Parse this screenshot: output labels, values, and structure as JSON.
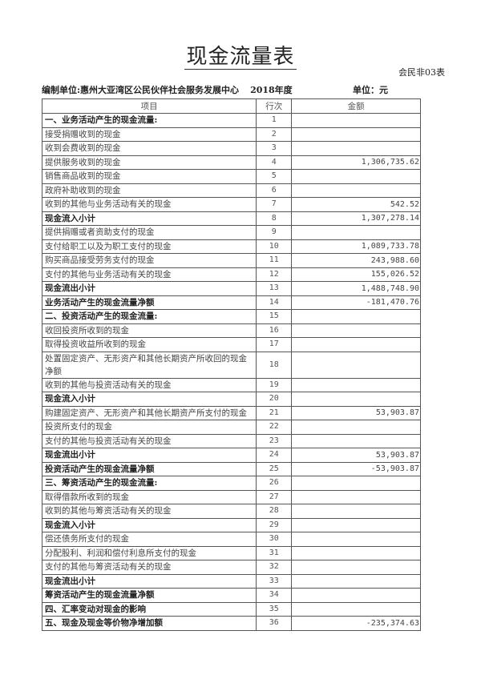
{
  "title": "现金流量表",
  "form_no": "会民非03表",
  "org_label": "编制单位:惠州大亚湾区公民伙伴社会服务发展中心",
  "year": "2018年度",
  "unit": "单位：元",
  "columns": [
    "项目",
    "行次",
    "金额"
  ],
  "rows": [
    {
      "item": "一、业务活动产生的现金流量:",
      "no": "1",
      "amount": "",
      "bold": true
    },
    {
      "item": "接受捐赠收到的现金",
      "no": "2",
      "amount": ""
    },
    {
      "item": "收到会费收到的现金",
      "no": "3",
      "amount": ""
    },
    {
      "item": "提供服务收到的现金",
      "no": "4",
      "amount": "1,306,735.62"
    },
    {
      "item": "销售商品收到的现金",
      "no": "5",
      "amount": ""
    },
    {
      "item": "政府补助收到的现金",
      "no": "6",
      "amount": ""
    },
    {
      "item": "收到的其他与业务活动有关的现金",
      "no": "7",
      "amount": "542.52"
    },
    {
      "item": "现金流入小计",
      "no": "8",
      "amount": "1,307,278.14",
      "bold": true
    },
    {
      "item": "提供捐赠或者资助支付的现金",
      "no": "9",
      "amount": ""
    },
    {
      "item": "支付给职工以及为职工支付的现金",
      "no": "10",
      "amount": "1,089,733.78"
    },
    {
      "item": "购买商品接受劳务支付的现金",
      "no": "11",
      "amount": "243,988.60"
    },
    {
      "item": "支付的其他与业务活动有关的现金",
      "no": "12",
      "amount": "155,026.52"
    },
    {
      "item": "现金流出小计",
      "no": "13",
      "amount": "1,488,748.90",
      "bold": true
    },
    {
      "item": "业务活动产生的现金流量净额",
      "no": "14",
      "amount": "-181,470.76",
      "bold": true
    },
    {
      "item": "二、投资活动产生的现金流量:",
      "no": "15",
      "amount": "",
      "bold": true
    },
    {
      "item": "收回投资所收到的现金",
      "no": "16",
      "amount": ""
    },
    {
      "item": "取得投资收益所收到的现金",
      "no": "17",
      "amount": ""
    },
    {
      "item": "处置固定资产、无形资产和其他长期资产所收回的现金净额",
      "no": "18",
      "amount": ""
    },
    {
      "item": "收到的其他与投资活动有关的现金",
      "no": "19",
      "amount": ""
    },
    {
      "item": "现金流入小计",
      "no": "20",
      "amount": "",
      "bold": true
    },
    {
      "item": "购建固定资产、无形资产和其他长期资产所支付的现金",
      "no": "21",
      "amount": "53,903.87"
    },
    {
      "item": "投资所支付的现金",
      "no": "22",
      "amount": ""
    },
    {
      "item": "支付的其他与投资活动有关的现金",
      "no": "23",
      "amount": ""
    },
    {
      "item": "现金流出小计",
      "no": "24",
      "amount": "53,903.87",
      "bold": true
    },
    {
      "item": "投资活动产生的现金流量净额",
      "no": "25",
      "amount": "-53,903.87",
      "bold": true
    },
    {
      "item": "三、筹资活动产生的现金流量:",
      "no": "26",
      "amount": "",
      "bold": true
    },
    {
      "item": "取得借款所收到的现金",
      "no": "27",
      "amount": ""
    },
    {
      "item": "收到的其他与筹资活动有关的现金",
      "no": "28",
      "amount": ""
    },
    {
      "item": "现金流入小计",
      "no": "29",
      "amount": "",
      "bold": true
    },
    {
      "item": "偿还债务所支付的现金",
      "no": "30",
      "amount": ""
    },
    {
      "item": "分配股利、利润和偿付利息所支付的现金",
      "no": "31",
      "amount": ""
    },
    {
      "item": "支付的其他与筹资活动有关的现金",
      "no": "32",
      "amount": ""
    },
    {
      "item": "现金流出小计",
      "no": "33",
      "amount": "",
      "bold": true
    },
    {
      "item": "筹资活动产生的现金流量净额",
      "no": "34",
      "amount": "",
      "bold": true
    },
    {
      "item": "四、汇率变动对现金的影响",
      "no": "35",
      "amount": "",
      "bold": true
    },
    {
      "item": "五、现金及现金等价物净增加额",
      "no": "36",
      "amount": "-235,374.63",
      "bold": true
    }
  ]
}
